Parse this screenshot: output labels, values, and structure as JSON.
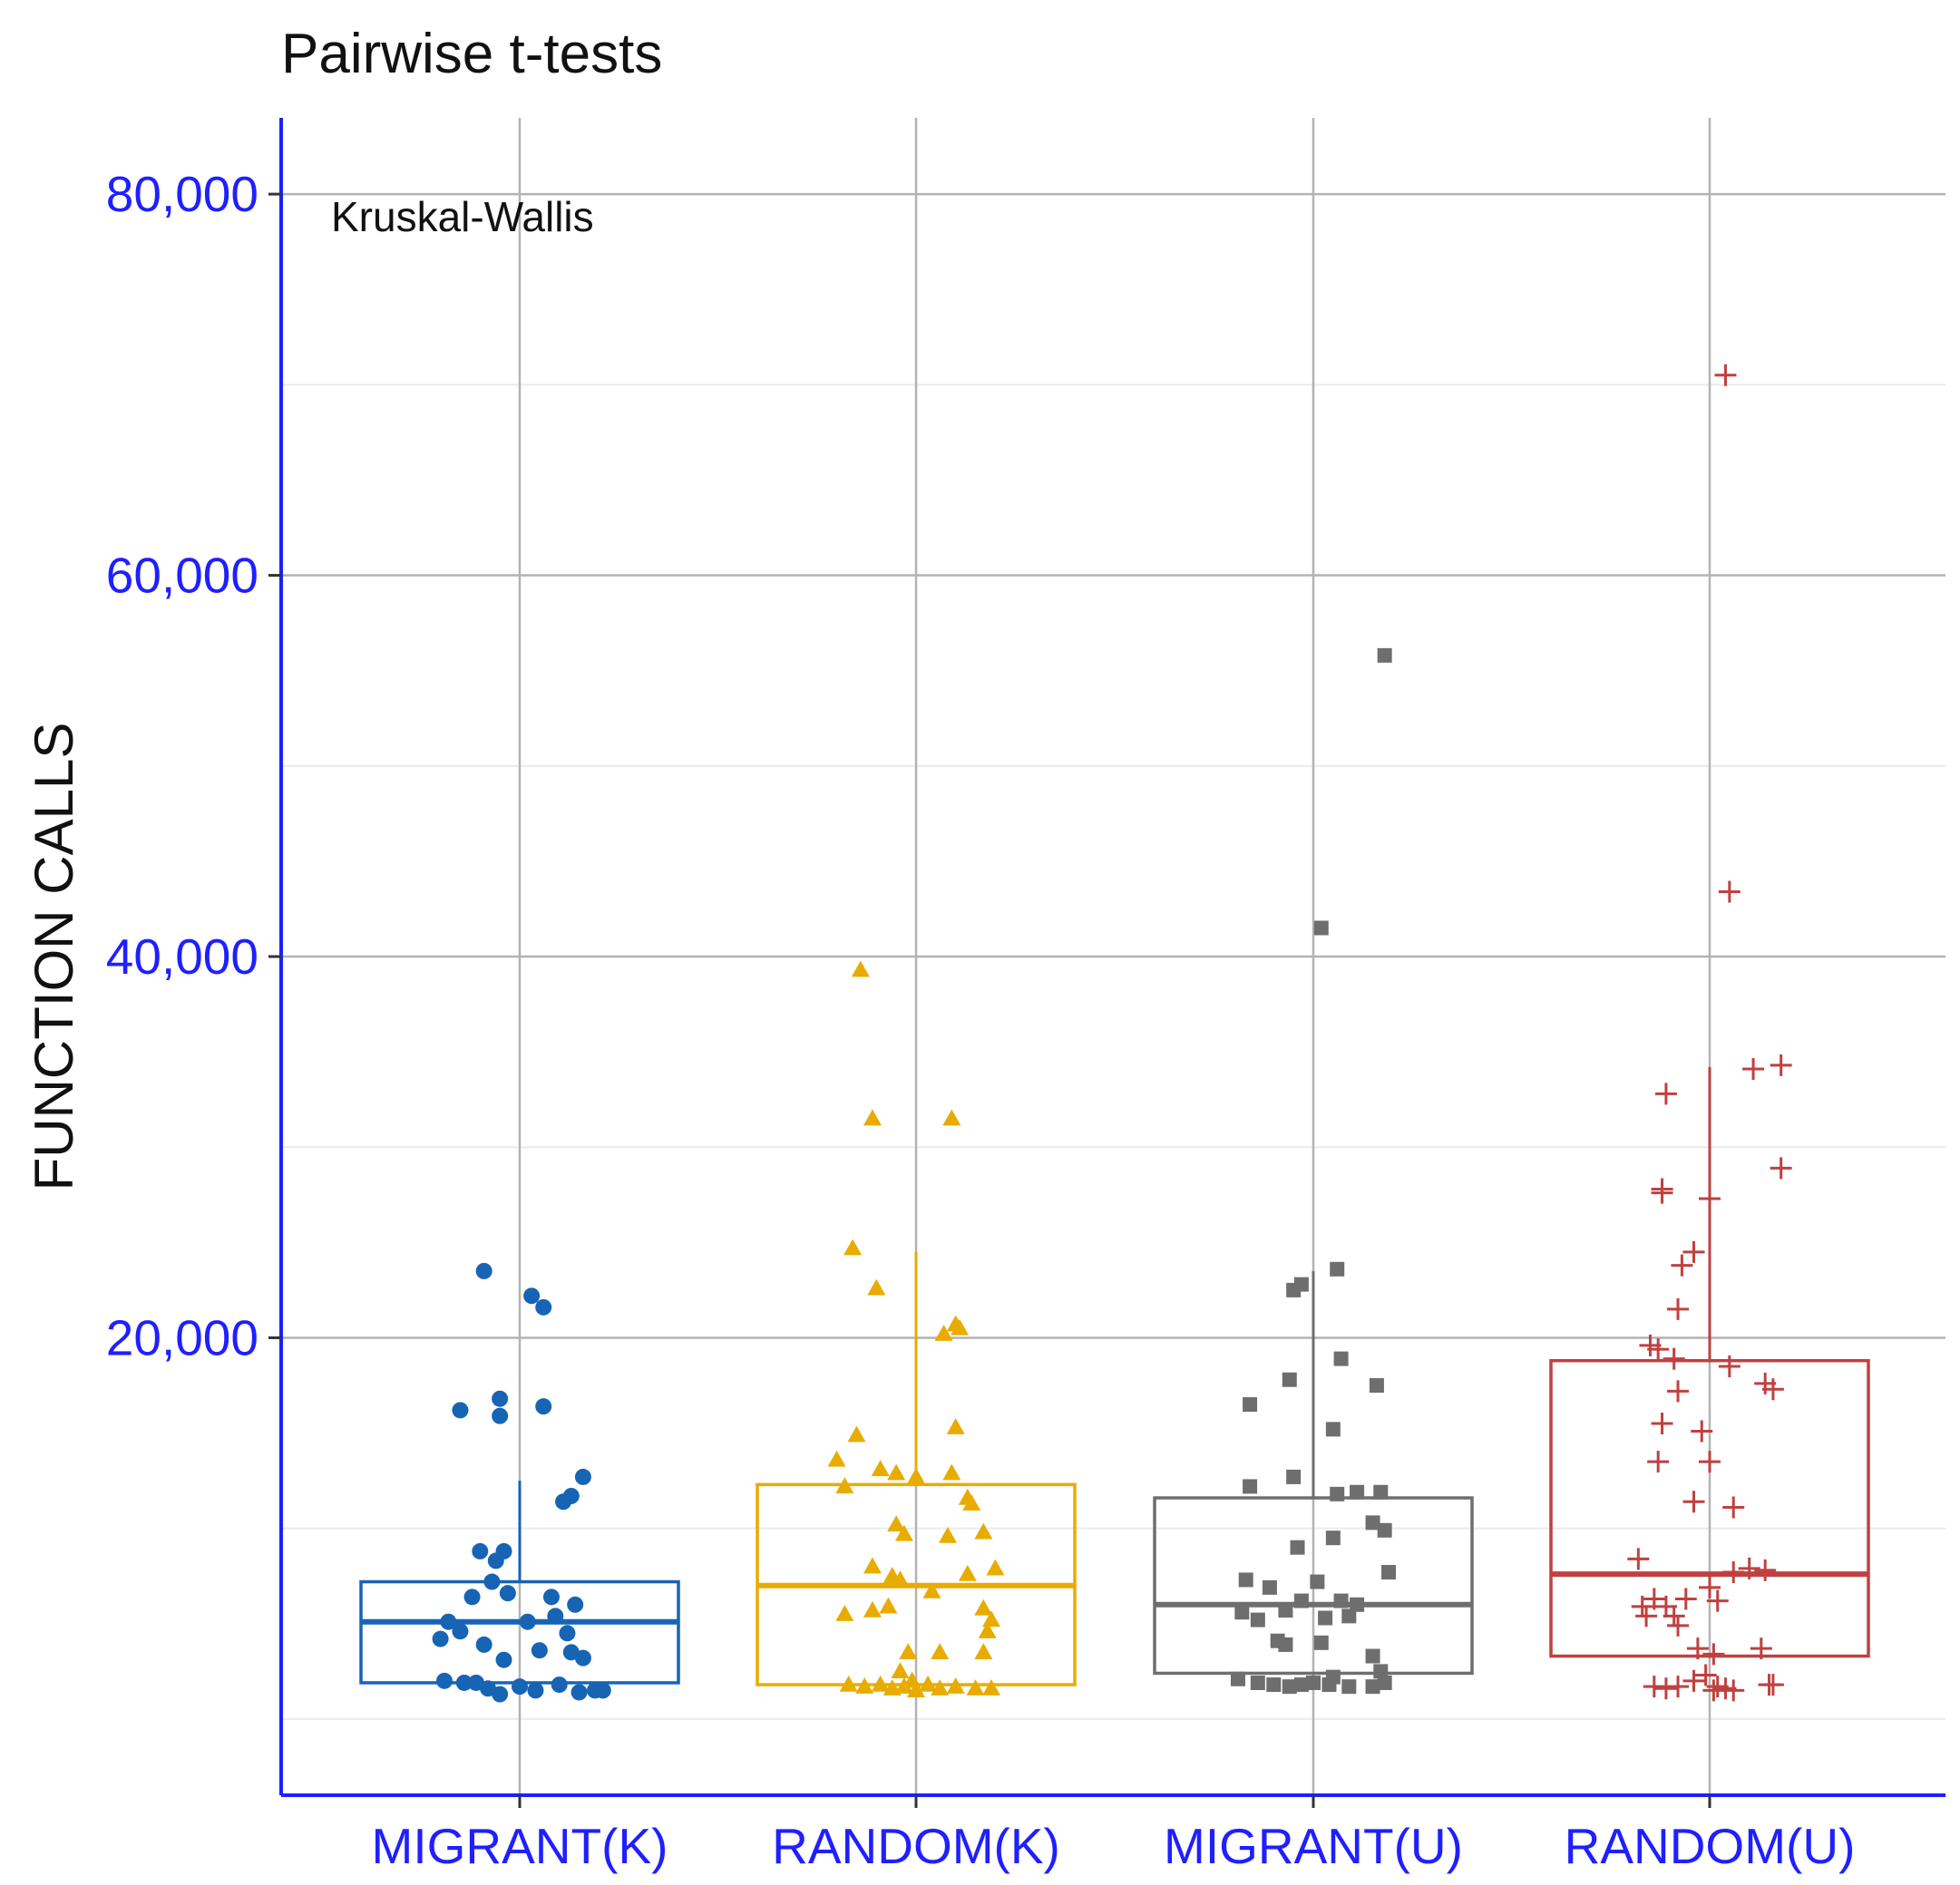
{
  "chart_data": {
    "type": "box",
    "title": "Pairwise t-tests",
    "annotation": "Kruskal-Wallis",
    "ylabel": "FUNCTION CALLS",
    "xlabel": "",
    "ylim": [
      -4000,
      84000
    ],
    "yticks": [
      20000,
      40000,
      60000,
      80000
    ],
    "ytick_labels": [
      "20,000",
      "40,000",
      "60,000",
      "80,000"
    ],
    "minor_y": [
      10000,
      30000,
      50000,
      70000
    ],
    "grid": true,
    "categories": [
      "MIGRANT(K)",
      "RANDOM(K)",
      "MIGRANT(U)",
      "RANDOM(U)"
    ],
    "colors": {
      "MIGRANT(K)": "#1764b4",
      "RANDOM(K)": "#e8ac00",
      "MIGRANT(U)": "#6e6e6e",
      "RANDOM(U)": "#c04040",
      "axis": "#1f1fff",
      "grid_major": "#b3b3b3",
      "grid_minor": "#ebebeb"
    },
    "series": [
      {
        "category": "MIGRANT(K)",
        "marker": "circle",
        "box": {
          "whisker_low": 1800,
          "q1": 1900,
          "median": 5100,
          "q3": 7200,
          "whisker_high": 12500
        },
        "points": [
          {
            "dx": -0.09,
            "y": 23500
          },
          {
            "dx": 0.03,
            "y": 22200
          },
          {
            "dx": 0.06,
            "y": 21600
          },
          {
            "dx": -0.15,
            "y": 16200
          },
          {
            "dx": -0.05,
            "y": 16800
          },
          {
            "dx": -0.05,
            "y": 15900
          },
          {
            "dx": 0.06,
            "y": 16400
          },
          {
            "dx": 0.16,
            "y": 12700
          },
          {
            "dx": 0.13,
            "y": 11700
          },
          {
            "dx": 0.11,
            "y": 11400
          },
          {
            "dx": -0.1,
            "y": 8800
          },
          {
            "dx": -0.04,
            "y": 8800
          },
          {
            "dx": -0.06,
            "y": 8300
          },
          {
            "dx": -0.07,
            "y": 7200
          },
          {
            "dx": -0.12,
            "y": 6400
          },
          {
            "dx": -0.03,
            "y": 6600
          },
          {
            "dx": 0.08,
            "y": 6400
          },
          {
            "dx": 0.14,
            "y": 6000
          },
          {
            "dx": -0.18,
            "y": 5100
          },
          {
            "dx": -0.15,
            "y": 4600
          },
          {
            "dx": 0.02,
            "y": 5100
          },
          {
            "dx": 0.09,
            "y": 5400
          },
          {
            "dx": 0.12,
            "y": 4500
          },
          {
            "dx": -0.2,
            "y": 4200
          },
          {
            "dx": -0.09,
            "y": 3900
          },
          {
            "dx": 0.05,
            "y": 3600
          },
          {
            "dx": 0.13,
            "y": 3500
          },
          {
            "dx": -0.04,
            "y": 3100
          },
          {
            "dx": 0.16,
            "y": 3200
          },
          {
            "dx": -0.19,
            "y": 2000
          },
          {
            "dx": -0.14,
            "y": 1900
          },
          {
            "dx": -0.08,
            "y": 1600
          },
          {
            "dx": -0.05,
            "y": 1300
          },
          {
            "dx": 0.0,
            "y": 1700
          },
          {
            "dx": 0.04,
            "y": 1500
          },
          {
            "dx": 0.1,
            "y": 1800
          },
          {
            "dx": 0.15,
            "y": 1400
          },
          {
            "dx": 0.19,
            "y": 1500
          },
          {
            "dx": 0.21,
            "y": 1500
          },
          {
            "dx": -0.11,
            "y": 1900
          }
        ]
      },
      {
        "category": "RANDOM(K)",
        "marker": "triangle",
        "box": {
          "whisker_low": 1700,
          "q1": 1800,
          "median": 7000,
          "q3": 12300,
          "whisker_high": 24500
        },
        "points": [
          {
            "dx": -0.14,
            "y": 39300
          },
          {
            "dx": -0.11,
            "y": 31500
          },
          {
            "dx": 0.09,
            "y": 31500
          },
          {
            "dx": -0.16,
            "y": 24700
          },
          {
            "dx": -0.1,
            "y": 22600
          },
          {
            "dx": 0.07,
            "y": 20200
          },
          {
            "dx": 0.1,
            "y": 20700
          },
          {
            "dx": 0.11,
            "y": 20500
          },
          {
            "dx": -0.2,
            "y": 13600
          },
          {
            "dx": -0.15,
            "y": 14900
          },
          {
            "dx": 0.1,
            "y": 15300
          },
          {
            "dx": -0.18,
            "y": 12200
          },
          {
            "dx": -0.09,
            "y": 13100
          },
          {
            "dx": -0.05,
            "y": 12900
          },
          {
            "dx": 0.0,
            "y": 12700
          },
          {
            "dx": 0.09,
            "y": 12900
          },
          {
            "dx": 0.13,
            "y": 11600
          },
          {
            "dx": 0.14,
            "y": 11300
          },
          {
            "dx": -0.05,
            "y": 10200
          },
          {
            "dx": -0.03,
            "y": 9700
          },
          {
            "dx": 0.08,
            "y": 9600
          },
          {
            "dx": 0.17,
            "y": 9800
          },
          {
            "dx": -0.11,
            "y": 8000
          },
          {
            "dx": -0.06,
            "y": 7500
          },
          {
            "dx": -0.04,
            "y": 7300
          },
          {
            "dx": 0.04,
            "y": 6700
          },
          {
            "dx": 0.13,
            "y": 7600
          },
          {
            "dx": 0.2,
            "y": 7900
          },
          {
            "dx": -0.18,
            "y": 5500
          },
          {
            "dx": -0.11,
            "y": 5700
          },
          {
            "dx": -0.07,
            "y": 5900
          },
          {
            "dx": 0.17,
            "y": 5800
          },
          {
            "dx": 0.19,
            "y": 5200
          },
          {
            "dx": 0.18,
            "y": 4600
          },
          {
            "dx": -0.02,
            "y": 3500
          },
          {
            "dx": 0.06,
            "y": 3500
          },
          {
            "dx": 0.17,
            "y": 3500
          },
          {
            "dx": -0.17,
            "y": 1800
          },
          {
            "dx": -0.13,
            "y": 1700
          },
          {
            "dx": -0.09,
            "y": 1800
          },
          {
            "dx": -0.06,
            "y": 1600
          },
          {
            "dx": -0.03,
            "y": 1700
          },
          {
            "dx": 0.0,
            "y": 1500
          },
          {
            "dx": 0.03,
            "y": 1800
          },
          {
            "dx": 0.06,
            "y": 1600
          },
          {
            "dx": 0.1,
            "y": 1700
          },
          {
            "dx": 0.15,
            "y": 1600
          },
          {
            "dx": 0.19,
            "y": 1600
          },
          {
            "dx": -0.04,
            "y": 2500
          },
          {
            "dx": -0.01,
            "y": 2000
          }
        ]
      },
      {
        "category": "MIGRANT(U)",
        "marker": "square",
        "box": {
          "whisker_low": 2300,
          "q1": 2400,
          "median": 6000,
          "q3": 11600,
          "whisker_high": 23500
        },
        "points": [
          {
            "dx": 0.18,
            "y": 55800
          },
          {
            "dx": 0.02,
            "y": 41500
          },
          {
            "dx": 0.06,
            "y": 23600
          },
          {
            "dx": -0.03,
            "y": 22800
          },
          {
            "dx": -0.05,
            "y": 22500
          },
          {
            "dx": 0.07,
            "y": 18900
          },
          {
            "dx": -0.06,
            "y": 17800
          },
          {
            "dx": 0.16,
            "y": 17500
          },
          {
            "dx": -0.16,
            "y": 16500
          },
          {
            "dx": 0.05,
            "y": 15200
          },
          {
            "dx": -0.16,
            "y": 12200
          },
          {
            "dx": -0.05,
            "y": 12700
          },
          {
            "dx": 0.06,
            "y": 11800
          },
          {
            "dx": 0.11,
            "y": 11900
          },
          {
            "dx": 0.17,
            "y": 11900
          },
          {
            "dx": 0.15,
            "y": 10300
          },
          {
            "dx": 0.18,
            "y": 9900
          },
          {
            "dx": 0.05,
            "y": 9500
          },
          {
            "dx": -0.04,
            "y": 9000
          },
          {
            "dx": 0.19,
            "y": 7700
          },
          {
            "dx": -0.17,
            "y": 7300
          },
          {
            "dx": -0.11,
            "y": 6900
          },
          {
            "dx": -0.03,
            "y": 6200
          },
          {
            "dx": 0.01,
            "y": 7200
          },
          {
            "dx": 0.07,
            "y": 6200
          },
          {
            "dx": 0.11,
            "y": 6000
          },
          {
            "dx": -0.18,
            "y": 5600
          },
          {
            "dx": -0.14,
            "y": 5200
          },
          {
            "dx": -0.07,
            "y": 5700
          },
          {
            "dx": 0.03,
            "y": 5300
          },
          {
            "dx": 0.09,
            "y": 5400
          },
          {
            "dx": -0.09,
            "y": 4100
          },
          {
            "dx": -0.07,
            "y": 3900
          },
          {
            "dx": 0.02,
            "y": 4000
          },
          {
            "dx": 0.15,
            "y": 3300
          },
          {
            "dx": -0.19,
            "y": 2100
          },
          {
            "dx": -0.14,
            "y": 1900
          },
          {
            "dx": -0.1,
            "y": 1800
          },
          {
            "dx": -0.06,
            "y": 1700
          },
          {
            "dx": -0.03,
            "y": 1800
          },
          {
            "dx": 0.0,
            "y": 1900
          },
          {
            "dx": 0.04,
            "y": 1800
          },
          {
            "dx": 0.09,
            "y": 1700
          },
          {
            "dx": 0.15,
            "y": 1700
          },
          {
            "dx": 0.18,
            "y": 1900
          },
          {
            "dx": 0.17,
            "y": 2500
          },
          {
            "dx": 0.05,
            "y": 2200
          }
        ]
      },
      {
        "category": "RANDOM(U)",
        "marker": "plus",
        "box": {
          "whisker_low": 3200,
          "q1": 3300,
          "median": 7600,
          "q3": 18800,
          "whisker_high": 34200
        },
        "points": [
          {
            "dx": 0.04,
            "y": 70500
          },
          {
            "dx": 0.05,
            "y": 43400
          },
          {
            "dx": 0.11,
            "y": 34100
          },
          {
            "dx": 0.18,
            "y": 34300
          },
          {
            "dx": -0.11,
            "y": 32800
          },
          {
            "dx": 0.18,
            "y": 28900
          },
          {
            "dx": -0.12,
            "y": 27800
          },
          {
            "dx": -0.12,
            "y": 27600
          },
          {
            "dx": 0.0,
            "y": 27300
          },
          {
            "dx": -0.04,
            "y": 24500
          },
          {
            "dx": -0.07,
            "y": 23800
          },
          {
            "dx": -0.08,
            "y": 21500
          },
          {
            "dx": -0.15,
            "y": 19600
          },
          {
            "dx": -0.13,
            "y": 19400
          },
          {
            "dx": -0.09,
            "y": 18900
          },
          {
            "dx": 0.05,
            "y": 18500
          },
          {
            "dx": 0.14,
            "y": 17600
          },
          {
            "dx": 0.16,
            "y": 17300
          },
          {
            "dx": -0.08,
            "y": 17200
          },
          {
            "dx": -0.12,
            "y": 15500
          },
          {
            "dx": -0.02,
            "y": 15100
          },
          {
            "dx": -0.13,
            "y": 13500
          },
          {
            "dx": 0.0,
            "y": 13500
          },
          {
            "dx": -0.04,
            "y": 11400
          },
          {
            "dx": 0.06,
            "y": 11100
          },
          {
            "dx": -0.18,
            "y": 8400
          },
          {
            "dx": 0.06,
            "y": 7700
          },
          {
            "dx": 0.1,
            "y": 7900
          },
          {
            "dx": 0.14,
            "y": 7800
          },
          {
            "dx": -0.14,
            "y": 6300
          },
          {
            "dx": -0.11,
            "y": 5900
          },
          {
            "dx": -0.06,
            "y": 6300
          },
          {
            "dx": 0.0,
            "y": 6900
          },
          {
            "dx": 0.02,
            "y": 6200
          },
          {
            "dx": -0.17,
            "y": 5900
          },
          {
            "dx": -0.16,
            "y": 5400
          },
          {
            "dx": -0.09,
            "y": 5400
          },
          {
            "dx": -0.08,
            "y": 4900
          },
          {
            "dx": -0.03,
            "y": 3700
          },
          {
            "dx": 0.01,
            "y": 3400
          },
          {
            "dx": 0.13,
            "y": 3700
          },
          {
            "dx": -0.14,
            "y": 1700
          },
          {
            "dx": -0.11,
            "y": 1600
          },
          {
            "dx": -0.08,
            "y": 1700
          },
          {
            "dx": -0.04,
            "y": 2000
          },
          {
            "dx": -0.01,
            "y": 2300
          },
          {
            "dx": 0.02,
            "y": 1700
          },
          {
            "dx": 0.04,
            "y": 1600
          },
          {
            "dx": 0.06,
            "y": 1500
          },
          {
            "dx": 0.15,
            "y": 1800
          },
          {
            "dx": 0.16,
            "y": 1800
          },
          {
            "dx": 0.01,
            "y": 1500
          }
        ]
      }
    ]
  }
}
